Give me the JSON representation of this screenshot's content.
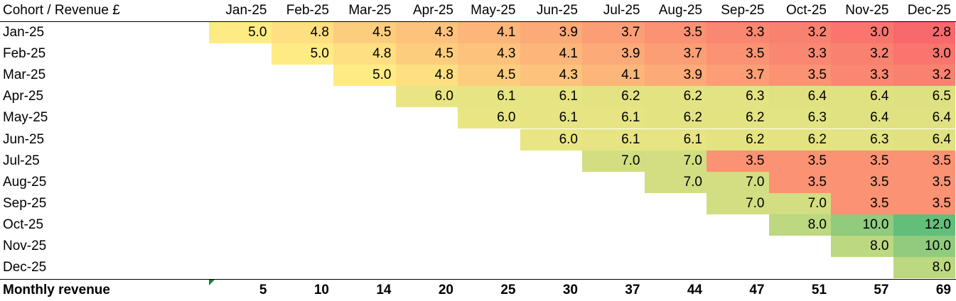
{
  "chart_data": {
    "type": "table",
    "corner_label": "Cohort / Revenue £",
    "columns": [
      "Jan-25",
      "Feb-25",
      "Mar-25",
      "Apr-25",
      "May-25",
      "Jun-25",
      "Jul-25",
      "Aug-25",
      "Sep-25",
      "Oct-25",
      "Nov-25",
      "Dec-25"
    ],
    "rows": [
      {
        "label": "Jan-25",
        "values": [
          "5.0",
          "4.8",
          "4.5",
          "4.3",
          "4.1",
          "3.9",
          "3.7",
          "3.5",
          "3.3",
          "3.2",
          "3.0",
          "2.8"
        ]
      },
      {
        "label": "Feb-25",
        "values": [
          null,
          "5.0",
          "4.8",
          "4.5",
          "4.3",
          "4.1",
          "3.9",
          "3.7",
          "3.5",
          "3.3",
          "3.2",
          "3.0"
        ]
      },
      {
        "label": "Mar-25",
        "values": [
          null,
          null,
          "5.0",
          "4.8",
          "4.5",
          "4.3",
          "4.1",
          "3.9",
          "3.7",
          "3.5",
          "3.3",
          "3.2"
        ]
      },
      {
        "label": "Apr-25",
        "values": [
          null,
          null,
          null,
          "6.0",
          "6.1",
          "6.1",
          "6.2",
          "6.2",
          "6.3",
          "6.4",
          "6.4",
          "6.5"
        ]
      },
      {
        "label": "May-25",
        "values": [
          null,
          null,
          null,
          null,
          "6.0",
          "6.1",
          "6.1",
          "6.2",
          "6.2",
          "6.3",
          "6.4",
          "6.4"
        ]
      },
      {
        "label": "Jun-25",
        "values": [
          null,
          null,
          null,
          null,
          null,
          "6.0",
          "6.1",
          "6.1",
          "6.2",
          "6.2",
          "6.3",
          "6.4"
        ]
      },
      {
        "label": "Jul-25",
        "values": [
          null,
          null,
          null,
          null,
          null,
          null,
          "7.0",
          "7.0",
          "3.5",
          "3.5",
          "3.5",
          "3.5"
        ]
      },
      {
        "label": "Aug-25",
        "values": [
          null,
          null,
          null,
          null,
          null,
          null,
          null,
          "7.0",
          "7.0",
          "3.5",
          "3.5",
          "3.5"
        ]
      },
      {
        "label": "Sep-25",
        "values": [
          null,
          null,
          null,
          null,
          null,
          null,
          null,
          null,
          "7.0",
          "7.0",
          "3.5",
          "3.5"
        ]
      },
      {
        "label": "Oct-25",
        "values": [
          null,
          null,
          null,
          null,
          null,
          null,
          null,
          null,
          null,
          "8.0",
          "10.0",
          "12.0"
        ]
      },
      {
        "label": "Nov-25",
        "values": [
          null,
          null,
          null,
          null,
          null,
          null,
          null,
          null,
          null,
          null,
          "8.0",
          "10.0"
        ]
      },
      {
        "label": "Dec-25",
        "values": [
          null,
          null,
          null,
          null,
          null,
          null,
          null,
          null,
          null,
          null,
          null,
          "8.0"
        ]
      }
    ],
    "total_label": "Monthly revenue",
    "totals": [
      "5",
      "10",
      "14",
      "20",
      "25",
      "30",
      "37",
      "44",
      "47",
      "51",
      "57",
      "69"
    ],
    "color_scale": {
      "low_color": "#f8696b",
      "mid_color": "#ffeb84",
      "high_color": "#63be7b",
      "low": 2.8,
      "mid": 5.0,
      "high": 12.0
    }
  }
}
